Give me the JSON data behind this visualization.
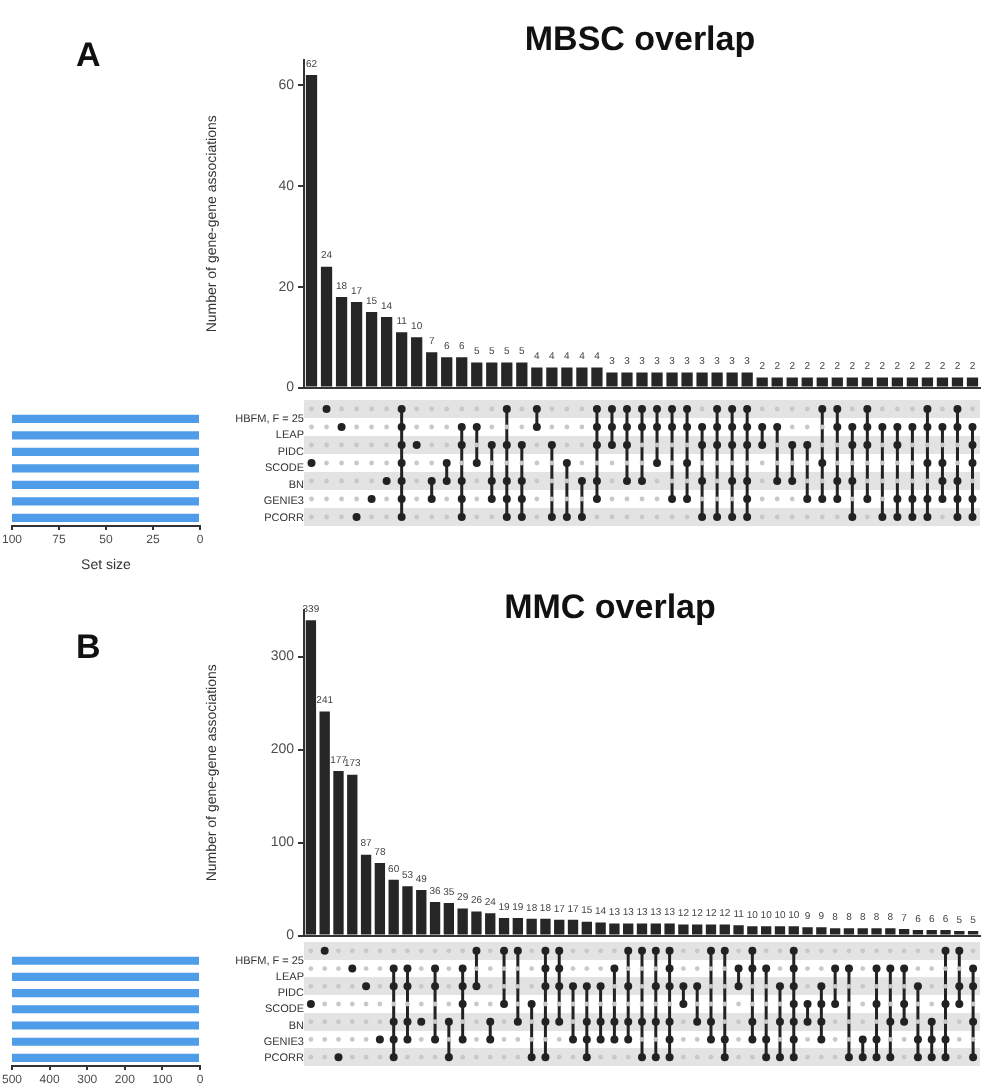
{
  "chart_data": [
    {
      "type": "bar",
      "title": "MBSC overlap",
      "annotations": [
        "A"
      ],
      "ylabel": "Number of gene-gene associations",
      "categories": [
        null,
        null,
        null,
        null,
        null,
        null,
        null,
        null,
        null,
        null,
        null,
        null,
        null,
        null,
        null,
        null,
        null,
        null,
        null,
        null,
        null,
        null,
        null,
        null,
        null,
        null,
        null,
        null,
        null,
        null,
        null,
        null,
        null,
        null,
        null,
        null,
        null,
        null,
        null,
        null,
        null,
        null,
        null,
        null,
        null
      ],
      "values": [
        62,
        24,
        18,
        17,
        15,
        14,
        11,
        10,
        7,
        6,
        6,
        5,
        5,
        5,
        5,
        4,
        4,
        4,
        4,
        4,
        3,
        3,
        3,
        3,
        3,
        3,
        3,
        3,
        3,
        3,
        2,
        2,
        2,
        2,
        2,
        2,
        2,
        2,
        2,
        2,
        2,
        2,
        2,
        2,
        2
      ],
      "color": "#262626",
      "data_labels": true,
      "ylim": [
        0,
        65
      ],
      "yticks": [
        0,
        20,
        40,
        60
      ]
    },
    {
      "type": "bar",
      "orientation": "horizontal",
      "xlabel": "Set size",
      "categories": [
        "HBFM, F = 25",
        "LEAP",
        "PIDC",
        "SCODE",
        "BN",
        "GENIE3",
        "PCORR"
      ],
      "values": [
        100,
        100,
        100,
        100,
        100,
        100,
        100
      ],
      "color": "#4f9de8",
      "xlim": [
        100,
        0
      ],
      "xticks": [
        100,
        75,
        50,
        25,
        0
      ]
    },
    {
      "type": "bar",
      "title": "MMC overlap",
      "annotations": [
        "B"
      ],
      "ylabel": "Number of gene-gene associations",
      "categories": [
        null,
        null,
        null,
        null,
        null,
        null,
        null,
        null,
        null,
        null,
        null,
        null,
        null,
        null,
        null,
        null,
        null,
        null,
        null,
        null,
        null,
        null,
        null,
        null,
        null,
        null,
        null,
        null,
        null,
        null,
        null,
        null,
        null,
        null,
        null,
        null,
        null,
        null,
        null,
        null,
        null,
        null,
        null,
        null,
        null,
        null,
        null,
        null,
        null
      ],
      "values": [
        339,
        241,
        177,
        173,
        87,
        78,
        60,
        53,
        49,
        36,
        35,
        29,
        26,
        24,
        19,
        19,
        18,
        18,
        17,
        17,
        15,
        14,
        13,
        13,
        13,
        13,
        13,
        12,
        12,
        12,
        12,
        11,
        10,
        10,
        10,
        10,
        9,
        9,
        8,
        8,
        8,
        8,
        8,
        7,
        6,
        6,
        6,
        5,
        5
      ],
      "color": "#262626",
      "data_labels": true,
      "ylim": [
        0,
        350
      ],
      "yticks": [
        0,
        100,
        200,
        300
      ]
    },
    {
      "type": "bar",
      "orientation": "horizontal",
      "categories": [
        "HBFM, F = 25",
        "LEAP",
        "PIDC",
        "SCODE",
        "BN",
        "GENIE3",
        "PCORR"
      ],
      "values": [
        500,
        500,
        500,
        500,
        500,
        500,
        500
      ],
      "color": "#4f9de8",
      "xlim": [
        500,
        0
      ],
      "xticks": [
        500,
        400,
        300,
        200,
        100,
        0
      ]
    }
  ]
}
